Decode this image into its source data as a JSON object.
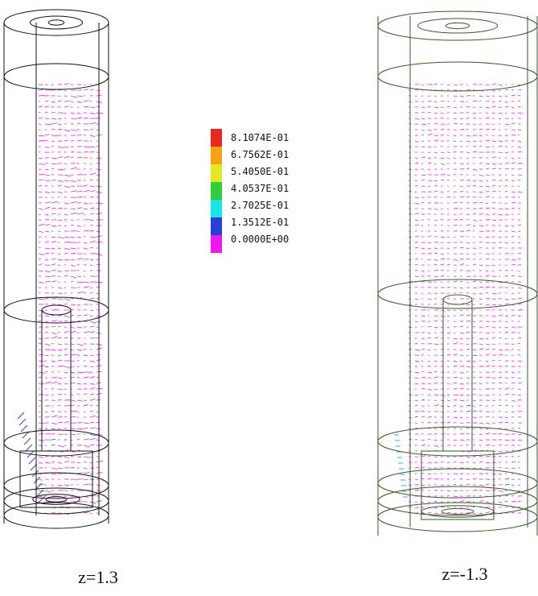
{
  "colorbar": {
    "labels": [
      "8.1074E-01",
      "6.7562E-01",
      "5.4050E-01",
      "4.0537E-01",
      "2.7025E-01",
      "1.3512E-01",
      "0.0000E+00"
    ]
  },
  "panels": [
    {
      "caption": "z=1.3"
    },
    {
      "caption": "z=-1.3"
    }
  ]
}
